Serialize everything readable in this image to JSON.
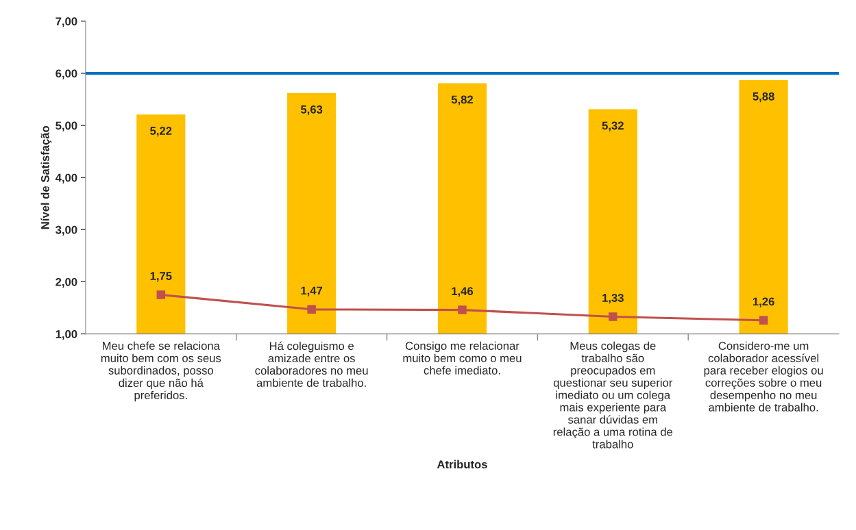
{
  "chart_data": {
    "type": "bar",
    "xlabel": "Atributos",
    "ylabel": "Nível de Satisfação",
    "categories": [
      "Meu chefe se relaciona\nmuito bem com os seus\nsubordinados, posso\ndizer que não há\npreferidos.",
      "Há coleguismo e\namizade entre os\ncolaboradores no meu\nambiente de trabalho.",
      "Consigo me relacionar\nmuito bem como o meu\nchefe imediato.",
      "Meus colegas de\ntrabalho são\npreocupados em\nquestionar seu superior\nimediato ou um colega\nmais experiente para\nsanar dúvidas em\nrelação a uma rotina de\ntrabalho",
      "Considero-me um\ncolaborador acessível\npara receber elogios ou\ncorreções sobre o meu\ndesempenho no meu\nambiente de trabalho."
    ],
    "series": [
      {
        "color": "#ffc000",
        "values": [
          5.22,
          5.63,
          5.82,
          5.32,
          5.88
        ],
        "value_labels": [
          "5,22",
          "5,63",
          "5,82",
          "5,32",
          "5,88"
        ]
      },
      {
        "type": "line",
        "color": "#c0504d",
        "marker": "square",
        "values": [
          1.75,
          1.47,
          1.46,
          1.33,
          1.26
        ],
        "value_labels": [
          "1,75",
          "1,47",
          "1,46",
          "1,33",
          "1,26"
        ]
      }
    ],
    "ylim": [
      1,
      7
    ],
    "yticks": [
      {
        "value": 1,
        "label": "1,00"
      },
      {
        "value": 2,
        "label": "2,00"
      },
      {
        "value": 3,
        "label": "3,00"
      },
      {
        "value": 4,
        "label": "4,00"
      },
      {
        "value": 5,
        "label": "5,00"
      },
      {
        "value": 6,
        "label": "6,00"
      },
      {
        "value": 7,
        "label": "7,00"
      }
    ],
    "ref_lines": [
      {
        "axis": "y",
        "value": 6,
        "color": "#0070c0"
      }
    ],
    "grid": false,
    "legend": false
  }
}
